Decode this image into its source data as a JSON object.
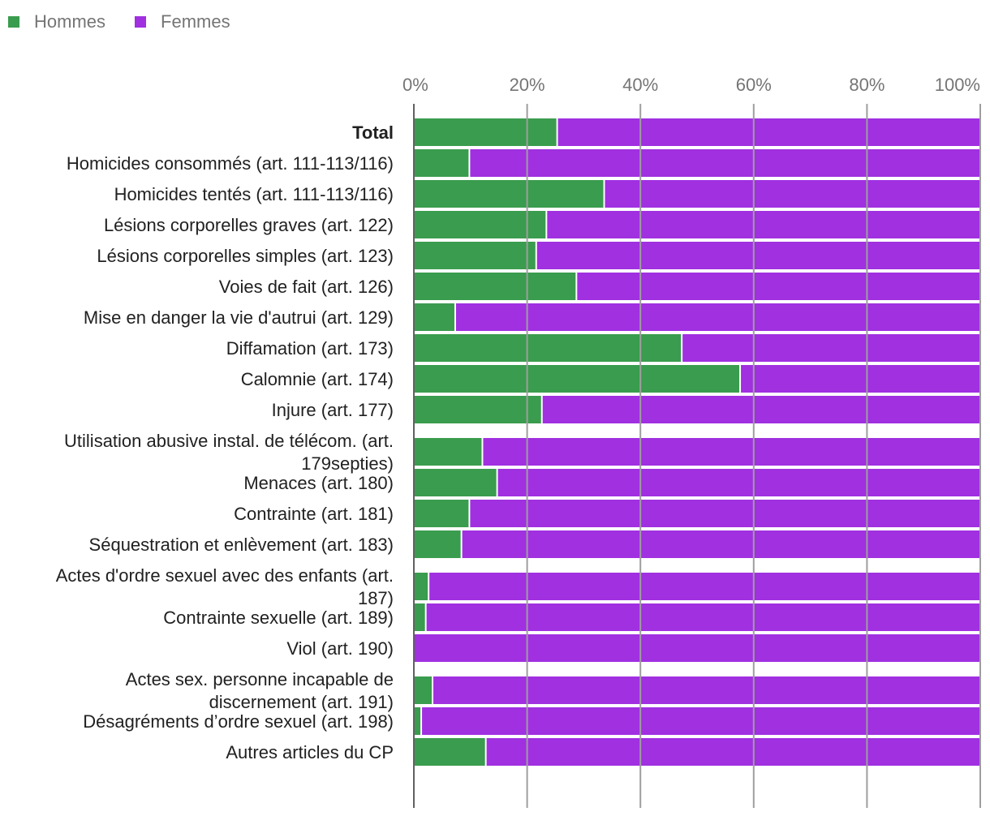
{
  "chart_data": {
    "type": "bar",
    "orientation": "horizontal",
    "stacked": true,
    "percent": true,
    "legend_position": "top-left",
    "xlim": [
      0,
      100
    ],
    "x_ticks": [
      "0%",
      "20%",
      "40%",
      "60%",
      "80%",
      "100%"
    ],
    "series": [
      {
        "name": "Hommes",
        "color": "#3a9c4e",
        "values": [
          25.3,
          9.8,
          33.6,
          23.4,
          21.6,
          28.7,
          7.3,
          47.3,
          57.6,
          22.6,
          12.1,
          14.7,
          9.8,
          8.4,
          2.6,
          2.1,
          0.0,
          3.3,
          1.3,
          12.7
        ]
      },
      {
        "name": "Femmes",
        "color": "#a030e0",
        "values": [
          74.7,
          90.2,
          66.4,
          76.6,
          78.4,
          71.3,
          92.7,
          52.7,
          42.4,
          77.4,
          87.9,
          85.3,
          90.2,
          91.6,
          97.4,
          97.9,
          100.0,
          96.7,
          98.7,
          87.3
        ]
      }
    ],
    "categories": [
      {
        "lines": [
          "Total"
        ],
        "bold": true
      },
      {
        "lines": [
          "Homicides consommés (art. 111-113/116)"
        ]
      },
      {
        "lines": [
          "Homicides tentés (art. 111-113/116)"
        ]
      },
      {
        "lines": [
          "Lésions corporelles graves (art. 122)"
        ]
      },
      {
        "lines": [
          "Lésions corporelles simples (art. 123)"
        ]
      },
      {
        "lines": [
          "Voies de fait (art. 126)"
        ]
      },
      {
        "lines": [
          "Mise en danger la vie d'autrui (art. 129)"
        ]
      },
      {
        "lines": [
          "Diffamation (art. 173)"
        ]
      },
      {
        "lines": [
          "Calomnie (art. 174)"
        ]
      },
      {
        "lines": [
          "Injure (art. 177)"
        ]
      },
      {
        "lines": [
          "Utilisation abusive instal. de télécom. (art.",
          "179septies)"
        ]
      },
      {
        "lines": [
          "Menaces (art. 180)"
        ]
      },
      {
        "lines": [
          "Contrainte (art. 181)"
        ]
      },
      {
        "lines": [
          "Séquestration et enlèvement (art. 183)"
        ]
      },
      {
        "lines": [
          "Actes d'ordre sexuel avec des enfants (art.",
          "187)"
        ]
      },
      {
        "lines": [
          "Contrainte sexuelle (art. 189)"
        ]
      },
      {
        "lines": [
          "Viol (art. 190)"
        ]
      },
      {
        "lines": [
          "Actes sex. personne incapable de",
          "discernement (art. 191)"
        ]
      },
      {
        "lines": [
          "Désagréments d’ordre sexuel (art. 198)"
        ]
      },
      {
        "lines": [
          "Autres articles du CP"
        ]
      }
    ]
  }
}
